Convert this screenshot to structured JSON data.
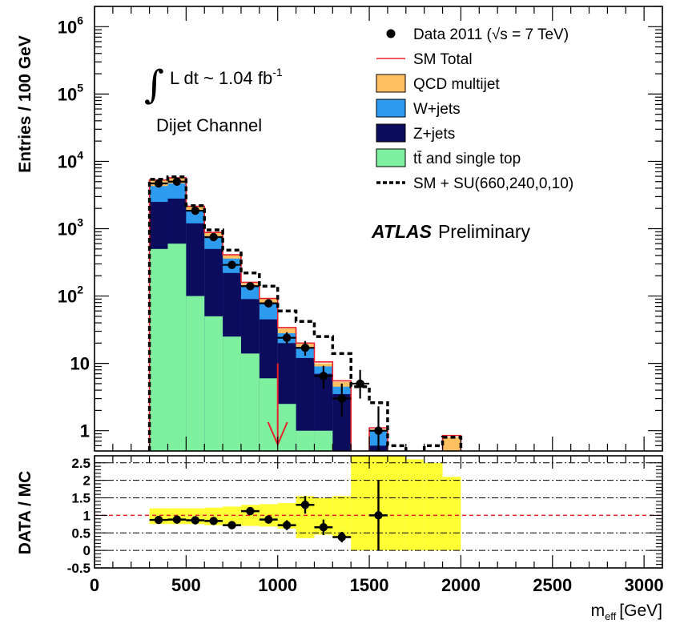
{
  "chart_data": [
    {
      "type": "histogram",
      "panel": "main",
      "ylabel": "Entries / 100 GeV",
      "yscale": "log",
      "ylim": [
        0.5,
        2000000
      ],
      "xlim": [
        0,
        3100
      ],
      "y_ticks": [
        {
          "value": 1,
          "label": "1"
        },
        {
          "value": 10,
          "label": "10"
        },
        {
          "value": 100,
          "label": "10",
          "exp": "2"
        },
        {
          "value": 1000,
          "label": "10",
          "exp": "3"
        },
        {
          "value": 10000,
          "label": "10",
          "exp": "4"
        },
        {
          "value": 100000,
          "label": "10",
          "exp": "5"
        },
        {
          "value": 1000000,
          "label": "10",
          "exp": "6"
        }
      ],
      "annotations": {
        "lumi_prefix": "L dt ~ 1.04 fb",
        "lumi_exp": "-1",
        "channel": "Dijet Channel",
        "atlas_bold": "ATLAS",
        "atlas_rest": "Preliminary",
        "cut_arrow_x": 1000
      },
      "legend": {
        "placement": "top-right",
        "entries": [
          {
            "key": "data",
            "label": "Data 2011 (√s = 7 TeV)"
          },
          {
            "key": "sm_total",
            "label": "SM Total",
            "color": "#e8202a"
          },
          {
            "key": "qcd",
            "label": "QCD multijet",
            "color": "#ffc061"
          },
          {
            "key": "wjets",
            "label": "W+jets",
            "color": "#2d9bf0"
          },
          {
            "key": "zjets",
            "label": "Z+jets",
            "color": "#0c0c5e"
          },
          {
            "key": "top",
            "label": "tt̄ and single top",
            "color": "#7ff0a0"
          },
          {
            "key": "signal",
            "label": "SM + SU(660,240,0,10)",
            "color": "#000000"
          }
        ]
      },
      "bin_width": 100,
      "stack": [
        {
          "key": "top",
          "color": "#7ff0a0",
          "bins": [
            [
              300,
              500
            ],
            [
              400,
              600
            ],
            [
              500,
              100
            ],
            [
              600,
              50
            ],
            [
              700,
              25
            ],
            [
              800,
              14
            ],
            [
              900,
              6
            ],
            [
              1000,
              2.5
            ],
            [
              1100,
              1
            ],
            [
              1200,
              1
            ]
          ]
        },
        {
          "key": "zjets",
          "color": "#0c0c5e",
          "bins": [
            [
              300,
              2500
            ],
            [
              400,
              2800
            ],
            [
              500,
              1200
            ],
            [
              600,
              500
            ],
            [
              700,
              220
            ],
            [
              800,
              90
            ],
            [
              900,
              45
            ],
            [
              1000,
              20
            ],
            [
              1100,
              12
            ],
            [
              1200,
              7
            ],
            [
              1300,
              3.5
            ],
            [
              1500,
              0.6
            ]
          ]
        },
        {
          "key": "wjets",
          "color": "#2d9bf0",
          "bins": [
            [
              300,
              4300
            ],
            [
              400,
              4700
            ],
            [
              500,
              1850
            ],
            [
              600,
              740
            ],
            [
              700,
              360
            ],
            [
              800,
              140
            ],
            [
              900,
              80
            ],
            [
              1000,
              28
            ],
            [
              1100,
              17
            ],
            [
              1200,
              9
            ],
            [
              1300,
              4.5
            ],
            [
              1500,
              1
            ]
          ]
        },
        {
          "key": "qcd",
          "color": "#ffc061",
          "bins": [
            [
              300,
              5200
            ],
            [
              400,
              5600
            ],
            [
              500,
              2100
            ],
            [
              600,
              860
            ],
            [
              700,
              400
            ],
            [
              800,
              155
            ],
            [
              900,
              90
            ],
            [
              1000,
              33
            ],
            [
              1100,
              19.5
            ],
            [
              1200,
              10
            ],
            [
              1300,
              5.3
            ],
            [
              1500,
              1.05
            ],
            [
              1900,
              0.8
            ]
          ]
        }
      ],
      "sm_total_bins": [
        [
          300,
          5300
        ],
        [
          400,
          5700
        ],
        [
          500,
          2150
        ],
        [
          600,
          880
        ],
        [
          700,
          410
        ],
        [
          800,
          160
        ],
        [
          900,
          92
        ],
        [
          1000,
          34
        ],
        [
          1100,
          20
        ],
        [
          1200,
          10.5
        ],
        [
          1300,
          5.5
        ],
        [
          1500,
          1.1
        ],
        [
          1900,
          0.85
        ]
      ],
      "signal_bins": [
        [
          300,
          5400
        ],
        [
          400,
          5900
        ],
        [
          500,
          2200
        ],
        [
          600,
          960
        ],
        [
          700,
          480
        ],
        [
          800,
          220
        ],
        [
          900,
          140
        ],
        [
          1000,
          60
        ],
        [
          1100,
          42
        ],
        [
          1200,
          25
        ],
        [
          1300,
          14
        ],
        [
          1400,
          4.5
        ],
        [
          1500,
          2.6
        ],
        [
          1600,
          0.6
        ],
        [
          1800,
          0.6
        ],
        [
          1900,
          0.8
        ]
      ],
      "data_points": [
        {
          "x": 350,
          "y": 4700,
          "ylo": 4620,
          "yhi": 4780
        },
        {
          "x": 450,
          "y": 5000,
          "ylo": 4920,
          "yhi": 5080
        },
        {
          "x": 550,
          "y": 1850,
          "ylo": 1800,
          "yhi": 1900
        },
        {
          "x": 650,
          "y": 750,
          "ylo": 720,
          "yhi": 780
        },
        {
          "x": 750,
          "y": 290,
          "ylo": 270,
          "yhi": 310
        },
        {
          "x": 850,
          "y": 140,
          "ylo": 128,
          "yhi": 152
        },
        {
          "x": 950,
          "y": 78,
          "ylo": 69,
          "yhi": 87
        },
        {
          "x": 1050,
          "y": 24,
          "ylo": 19.5,
          "yhi": 29
        },
        {
          "x": 1150,
          "y": 17,
          "ylo": 13,
          "yhi": 21.5
        },
        {
          "x": 1250,
          "y": 6.5,
          "ylo": 4.2,
          "yhi": 9.2
        },
        {
          "x": 1350,
          "y": 3,
          "ylo": 1.6,
          "yhi": 5
        },
        {
          "x": 1450,
          "y": 5,
          "ylo": 3,
          "yhi": 8
        },
        {
          "x": 1550,
          "y": 1,
          "ylo": 0.3,
          "yhi": 2.3
        }
      ]
    },
    {
      "type": "scatter",
      "panel": "ratio",
      "ylabel": "DATA / MC",
      "xlabel": "m",
      "xlabel_sub": "eff",
      "xlabel_unit": "[GeV]",
      "xlim": [
        0,
        3100
      ],
      "ylim": [
        -0.5,
        2.7
      ],
      "x_ticks": [
        0,
        500,
        1000,
        1500,
        2000,
        2500,
        3000
      ],
      "y_ticks": [
        -0.5,
        0,
        0.5,
        1,
        1.5,
        2,
        2.5
      ],
      "dashed_grid": [
        0,
        0.5,
        1.5,
        2,
        2.5
      ],
      "reference_line": 1,
      "uncertainty_band": [
        [
          300,
          0.75,
          1.2
        ],
        [
          400,
          0.75,
          1.2
        ],
        [
          500,
          0.75,
          1.2
        ],
        [
          600,
          0.72,
          1.22
        ],
        [
          700,
          0.72,
          1.25
        ],
        [
          800,
          0.7,
          1.3
        ],
        [
          900,
          0.68,
          1.32
        ],
        [
          1000,
          0.62,
          1.35
        ],
        [
          1100,
          0.35,
          1.55
        ],
        [
          1200,
          0.45,
          1.5
        ],
        [
          1300,
          0.35,
          1.55
        ],
        [
          1400,
          0,
          2.7
        ],
        [
          1500,
          0,
          2.7
        ],
        [
          1600,
          0,
          2.7
        ],
        [
          1700,
          0,
          2.6
        ],
        [
          1800,
          0,
          2.5
        ],
        [
          1900,
          0,
          2.1
        ]
      ],
      "points": [
        {
          "x": 350,
          "y": 0.87,
          "err": 0.02
        },
        {
          "x": 450,
          "y": 0.88,
          "err": 0.02
        },
        {
          "x": 550,
          "y": 0.86,
          "err": 0.03
        },
        {
          "x": 650,
          "y": 0.84,
          "err": 0.04
        },
        {
          "x": 750,
          "y": 0.72,
          "err": 0.05
        },
        {
          "x": 850,
          "y": 1.12,
          "err": 0.08
        },
        {
          "x": 950,
          "y": 0.88,
          "err": 0.1
        },
        {
          "x": 1050,
          "y": 0.72,
          "err": 0.14
        },
        {
          "x": 1150,
          "y": 1.3,
          "err": 0.25
        },
        {
          "x": 1250,
          "y": 0.66,
          "err": 0.22
        },
        {
          "x": 1350,
          "y": 0.38,
          "err": 0.15
        },
        {
          "x": 1550,
          "y": 1.0,
          "err": 1.0
        }
      ]
    }
  ]
}
